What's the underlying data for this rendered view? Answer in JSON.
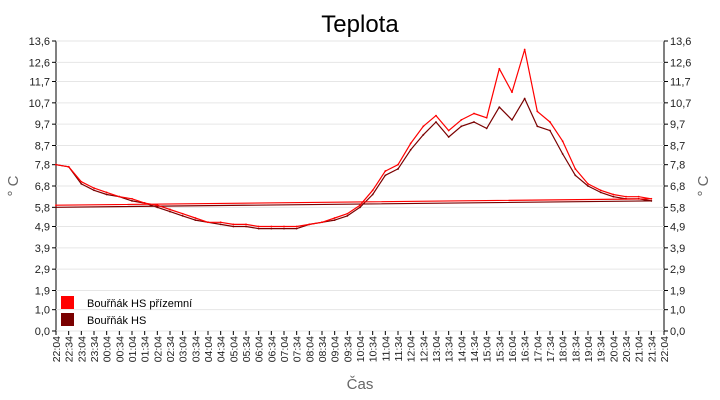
{
  "chart_data": {
    "type": "line",
    "title": "Teplota",
    "xlabel": "Čas",
    "ylabel": "° C",
    "y_ticks": [
      "13,6",
      "12,6",
      "11,7",
      "10,7",
      "9,7",
      "8,7",
      "7,8",
      "6,8",
      "5,8",
      "4,9",
      "3,9",
      "2,9",
      "1,9",
      "1,0",
      "0,0"
    ],
    "x_ticks": [
      "22:04",
      "22:34",
      "23:04",
      "23:34",
      "00:04",
      "00:34",
      "01:04",
      "01:34",
      "02:04",
      "02:34",
      "03:04",
      "03:34",
      "04:04",
      "04:34",
      "05:04",
      "05:34",
      "06:04",
      "06:34",
      "07:04",
      "07:34",
      "08:04",
      "08:34",
      "09:04",
      "09:34",
      "10:04",
      "10:34",
      "11:04",
      "11:34",
      "12:04",
      "12:34",
      "13:04",
      "13:34",
      "14:04",
      "14:34",
      "15:04",
      "15:34",
      "16:04",
      "16:34",
      "17:04",
      "17:34",
      "18:04",
      "18:34",
      "19:04",
      "19:34",
      "20:04",
      "20:34",
      "21:04",
      "21:34",
      "22:04"
    ],
    "ylim": [
      0,
      13.6
    ],
    "grid": true,
    "legend_position": "bottom-left",
    "series": [
      {
        "name": "Bouřňák HS přízemní",
        "color": "#ff0000",
        "x": [
          "22:04",
          "22:34",
          "23:04",
          "23:34",
          "00:04",
          "00:34",
          "01:04",
          "01:34",
          "02:04",
          "02:34",
          "03:04",
          "03:34",
          "04:04",
          "04:34",
          "05:04",
          "05:34",
          "06:04",
          "06:34",
          "07:04",
          "07:34",
          "08:04",
          "08:34",
          "09:04",
          "09:34",
          "10:04",
          "10:34",
          "11:04",
          "11:34",
          "12:04",
          "12:34",
          "13:04",
          "13:34",
          "14:04",
          "14:34",
          "15:04",
          "15:34",
          "16:04",
          "16:34",
          "17:04",
          "17:34",
          "18:04",
          "18:34",
          "19:04",
          "19:34",
          "20:04",
          "20:34",
          "21:04",
          "21:34",
          "22:04"
        ],
        "values": [
          7.8,
          7.7,
          7.0,
          6.7,
          6.5,
          6.3,
          6.2,
          6.0,
          5.9,
          5.7,
          5.5,
          5.3,
          5.1,
          5.1,
          5.0,
          5.0,
          4.9,
          4.9,
          4.9,
          4.9,
          5.0,
          5.1,
          5.3,
          5.5,
          5.9,
          6.6,
          7.5,
          7.8,
          8.8,
          9.6,
          10.1,
          9.4,
          9.9,
          10.2,
          10.0,
          12.3,
          11.2,
          13.2,
          10.3,
          9.8,
          8.9,
          7.6,
          6.9,
          6.6,
          6.4,
          6.3,
          6.3,
          6.2,
          5.9
        ]
      },
      {
        "name": "Bouřňák HS",
        "color": "#7a0000",
        "x": [
          "22:04",
          "22:34",
          "23:04",
          "23:34",
          "00:04",
          "00:34",
          "01:04",
          "01:34",
          "02:04",
          "02:34",
          "03:04",
          "03:34",
          "04:04",
          "04:34",
          "05:04",
          "05:34",
          "06:04",
          "06:34",
          "07:04",
          "07:34",
          "08:04",
          "08:34",
          "09:04",
          "09:34",
          "10:04",
          "10:34",
          "11:04",
          "11:34",
          "12:04",
          "12:34",
          "13:04",
          "13:34",
          "14:04",
          "14:34",
          "15:04",
          "15:34",
          "16:04",
          "16:34",
          "17:04",
          "17:34",
          "18:04",
          "18:34",
          "19:04",
          "19:34",
          "20:04",
          "20:34",
          "21:04",
          "21:34",
          "22:04"
        ],
        "values": [
          7.8,
          7.7,
          6.9,
          6.6,
          6.4,
          6.3,
          6.1,
          6.0,
          5.8,
          5.6,
          5.4,
          5.2,
          5.1,
          5.0,
          4.9,
          4.9,
          4.8,
          4.8,
          4.8,
          4.8,
          5.0,
          5.1,
          5.2,
          5.4,
          5.8,
          6.4,
          7.3,
          7.6,
          8.5,
          9.2,
          9.8,
          9.1,
          9.6,
          9.8,
          9.5,
          10.5,
          9.9,
          10.9,
          9.6,
          9.4,
          8.3,
          7.3,
          6.8,
          6.5,
          6.3,
          6.2,
          6.2,
          6.1,
          5.8
        ]
      }
    ]
  }
}
